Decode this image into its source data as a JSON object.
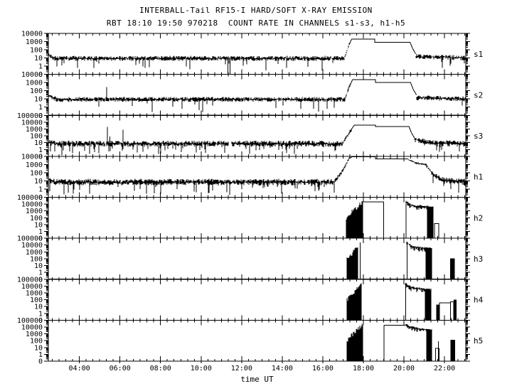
{
  "chart_data": {
    "type": "line",
    "title": "INTERBALL-Tail RF15-I HARD/SOFT X-RAY EMISSION",
    "subtitle": "RBT 18:10 19:50 970218  COUNT RATE IN CHANNELS s1-s3, h1-h5",
    "xlabel": "time UT",
    "grid": false,
    "legend": "none",
    "y_axis": {
      "scale": "pseudo-log",
      "zero_at_bottom": true
    },
    "x_axis": {
      "start_hour": 2.47,
      "end_hour": 23.05,
      "major_tick_hours": [
        4,
        6,
        8,
        10,
        12,
        14,
        16,
        18,
        20,
        22
      ],
      "tick_labels": [
        "04:00",
        "06:00",
        "08:00",
        "10:00",
        "12:00",
        "14:00",
        "16:00",
        "18:00",
        "20:00",
        "22:00"
      ],
      "minor_tick_minutes": 20
    },
    "panels": [
      {
        "label": "s1",
        "max_exp": 4,
        "y_tick_labels": [
          "10000",
          "1000",
          "100",
          "10",
          "1",
          "0"
        ],
        "segments": [
          {
            "kind": "noise",
            "t": [
              2.47,
              2.8
            ],
            "level": [
              1.3,
              0.95
            ],
            "amp": 0.3,
            "p": 0.05
          },
          {
            "kind": "noise",
            "t": [
              2.8,
              17.05
            ],
            "level": [
              0.95,
              0.95
            ],
            "amp": 0.3,
            "p": 0.06
          },
          {
            "kind": "drop",
            "t": 11.33,
            "from": 0.9
          },
          {
            "kind": "drop",
            "t": 11.42,
            "from": 0.9
          },
          {
            "kind": "noise",
            "t": [
              17.05,
              17.3
            ],
            "level": [
              1.0,
              2.6
            ],
            "amp": 0.22,
            "p": 0
          },
          {
            "kind": "line",
            "pts": [
              [
                17.3,
                2.6
              ],
              [
                17.42,
                3.3
              ],
              [
                18.56,
                3.3
              ],
              [
                18.56,
                2.93
              ],
              [
                20.3,
                2.93
              ],
              [
                20.44,
                2.1
              ],
              [
                20.58,
                1.5
              ]
            ]
          },
          {
            "kind": "noise",
            "t": [
              20.58,
              23.05
            ],
            "level": [
              1.2,
              1.0
            ],
            "amp": 0.3,
            "p": 0.06
          }
        ]
      },
      {
        "label": "s2",
        "max_exp": 4,
        "y_tick_labels": [
          "10000",
          "1000",
          "100",
          "10",
          "1",
          "0"
        ],
        "segments": [
          {
            "kind": "noise",
            "t": [
              2.47,
              2.9
            ],
            "level": [
              1.45,
              0.95
            ],
            "amp": 0.3,
            "p": 0.05
          },
          {
            "kind": "noise",
            "t": [
              2.9,
              17.1
            ],
            "level": [
              0.95,
              0.95
            ],
            "amp": 0.3,
            "p": 0.06
          },
          {
            "kind": "spike",
            "t": 5.35,
            "from": 1.1,
            "level": 2.45
          },
          {
            "kind": "noise",
            "t": [
              17.1,
              17.35
            ],
            "level": [
              1.0,
              2.7
            ],
            "amp": 0.22,
            "p": 0
          },
          {
            "kind": "line",
            "pts": [
              [
                17.35,
                2.7
              ],
              [
                17.47,
                3.37
              ],
              [
                18.6,
                3.37
              ],
              [
                18.6,
                3.0
              ],
              [
                20.33,
                3.0
              ],
              [
                20.47,
                2.1
              ],
              [
                20.62,
                1.5
              ]
            ]
          },
          {
            "kind": "noise",
            "t": [
              20.62,
              23.05
            ],
            "level": [
              1.15,
              1.0
            ],
            "amp": 0.3,
            "p": 0.06
          }
        ]
      },
      {
        "label": "s3",
        "max_exp": 5,
        "y_tick_labels": [
          "100000",
          "10000",
          "1000",
          "100",
          "10",
          "1",
          "0"
        ],
        "segments": [
          {
            "kind": "noise",
            "t": [
              2.47,
              2.8
            ],
            "level": [
              1.1,
              0.85
            ],
            "amp": 0.45,
            "p": 0.1
          },
          {
            "kind": "noise",
            "t": [
              2.8,
              11.33
            ],
            "level": [
              0.85,
              0.85
            ],
            "amp": 0.45,
            "p": 0.12
          },
          {
            "kind": "spike",
            "t": 5.38,
            "from": 1.0,
            "level": 3.3
          },
          {
            "kind": "spike",
            "t": 5.5,
            "from": 1.0,
            "level": 1.9
          },
          {
            "kind": "spike",
            "t": 6.15,
            "from": 1.0,
            "level": 2.9
          },
          {
            "kind": "noise",
            "t": [
              11.5,
              17.0
            ],
            "level": [
              0.85,
              0.85
            ],
            "amp": 0.45,
            "p": 0.12
          },
          {
            "kind": "noise",
            "t": [
              17.0,
              17.4
            ],
            "level": [
              0.95,
              2.9
            ],
            "amp": 0.28,
            "p": 0
          },
          {
            "kind": "line",
            "pts": [
              [
                17.4,
                2.9
              ],
              [
                17.55,
                3.55
              ],
              [
                18.6,
                3.55
              ],
              [
                18.6,
                3.37
              ],
              [
                20.25,
                3.37
              ],
              [
                20.38,
                2.4
              ],
              [
                20.52,
                1.7
              ]
            ]
          },
          {
            "kind": "noise",
            "t": [
              20.52,
              21.3
            ],
            "level": [
              1.5,
              1.0
            ],
            "amp": 0.4,
            "p": 0.1
          },
          {
            "kind": "noise",
            "t": [
              21.3,
              23.05
            ],
            "level": [
              0.92,
              0.88
            ],
            "amp": 0.45,
            "p": 0.12
          }
        ]
      },
      {
        "label": "h1",
        "max_exp": 4,
        "y_tick_labels": [
          "10000",
          "1000",
          "100",
          "10",
          "1",
          "0"
        ],
        "segments": [
          {
            "kind": "noise",
            "t": [
              2.47,
              2.8
            ],
            "level": [
              1.15,
              0.85
            ],
            "amp": 0.4,
            "p": 0.08
          },
          {
            "kind": "noise",
            "t": [
              2.8,
              16.55
            ],
            "level": [
              0.85,
              0.85
            ],
            "amp": 0.4,
            "p": 0.08
          },
          {
            "kind": "noise",
            "t": [
              16.55,
              16.95
            ],
            "level": [
              0.9,
              2.1
            ],
            "amp": 0.28,
            "p": 0
          },
          {
            "kind": "noise",
            "t": [
              16.95,
              17.3
            ],
            "level": [
              2.1,
              3.75
            ],
            "amp": 0.18,
            "p": 0
          },
          {
            "kind": "line",
            "pts": [
              [
                17.3,
                3.75
              ],
              [
                17.45,
                3.95
              ],
              [
                18.6,
                3.95
              ],
              [
                18.6,
                3.7
              ],
              [
                20.2,
                3.7
              ]
            ]
          },
          {
            "kind": "noise",
            "t": [
              20.2,
              20.55
            ],
            "level": [
              3.62,
              3.25
            ],
            "amp": 0.12,
            "p": 0
          },
          {
            "kind": "noise",
            "t": [
              20.55,
              21.1
            ],
            "level": [
              3.2,
              3.0
            ],
            "amp": 0.15,
            "p": 0
          },
          {
            "kind": "noise",
            "t": [
              21.1,
              21.4
            ],
            "level": [
              2.9,
              1.9
            ],
            "amp": 0.25,
            "p": 0.03
          },
          {
            "kind": "noise",
            "t": [
              21.4,
              21.95
            ],
            "level": [
              1.8,
              1.1
            ],
            "amp": 0.35,
            "p": 0.05
          },
          {
            "kind": "noise",
            "t": [
              21.95,
              23.05
            ],
            "level": [
              1.0,
              0.9
            ],
            "amp": 0.4,
            "p": 0.08
          }
        ]
      },
      {
        "label": "h2",
        "max_exp": 5,
        "y_tick_labels": [
          "100000",
          "10000",
          "1000",
          "100",
          "10",
          "1",
          "0"
        ],
        "segments": [
          {
            "kind": "zero",
            "t": [
              2.47,
              17.15
            ]
          },
          {
            "kind": "burst",
            "t": [
              17.15,
              17.95
            ],
            "env": [
              [
                17.15,
                1.8
              ],
              [
                17.4,
                2.9
              ],
              [
                17.7,
                3.6
              ],
              [
                17.95,
                4.4
              ]
            ],
            "jitter": 0.3
          },
          {
            "kind": "rect",
            "t": [
              17.95,
              19.0
            ],
            "level": 4.32
          },
          {
            "kind": "zero",
            "t": [
              19.0,
              20.1
            ]
          },
          {
            "kind": "band",
            "t": [
              20.1,
              21.42
            ],
            "env": [
              [
                20.1,
                4.45
              ],
              [
                20.3,
                4.0
              ],
              [
                20.6,
                3.8
              ],
              [
                21.0,
                3.72
              ],
              [
                21.42,
                3.6
              ]
            ],
            "thick": 0.55,
            "solid_tail": 0.3,
            "lead": true
          },
          {
            "kind": "rect",
            "t": [
              21.5,
              21.72
            ],
            "level": 1.15
          },
          {
            "kind": "zero",
            "t": [
              21.72,
              23.05
            ]
          }
        ]
      },
      {
        "label": "h3",
        "max_exp": 5,
        "y_tick_labels": [
          "100000",
          "10000",
          "1000",
          "100",
          "10",
          "1",
          "0"
        ],
        "segments": [
          {
            "kind": "zero",
            "t": [
              2.47,
              17.18
            ]
          },
          {
            "kind": "burst",
            "t": [
              17.18,
              17.72
            ],
            "env": [
              [
                17.18,
                1.9
              ],
              [
                17.4,
                2.6
              ],
              [
                17.72,
                3.85
              ]
            ],
            "jitter": 0.3
          },
          {
            "kind": "zero",
            "t": [
              17.72,
              17.83
            ]
          },
          {
            "kind": "spike",
            "t": 17.85,
            "from": null,
            "level": 4.4
          },
          {
            "kind": "zero",
            "t": [
              17.86,
              20.15
            ]
          },
          {
            "kind": "band",
            "t": [
              20.15,
              21.38
            ],
            "env": [
              [
                20.15,
                4.4
              ],
              [
                20.4,
                3.9
              ],
              [
                20.8,
                3.7
              ],
              [
                21.38,
                3.55
              ]
            ],
            "thick": 0.55,
            "solid_tail": 0.3,
            "lead": true
          },
          {
            "kind": "zero",
            "t": [
              21.38,
              22.28
            ]
          },
          {
            "kind": "bar",
            "t": [
              22.28,
              22.5
            ],
            "level": 2.05
          },
          {
            "kind": "zero",
            "t": [
              22.5,
              23.05
            ]
          }
        ]
      },
      {
        "label": "h4",
        "max_exp": 5,
        "y_tick_labels": [
          "100000",
          "10000",
          "1000",
          "100",
          "10",
          "1",
          "0"
        ],
        "segments": [
          {
            "kind": "zero",
            "t": [
              2.47,
              17.2
            ]
          },
          {
            "kind": "burst",
            "t": [
              17.2,
              17.9
            ],
            "env": [
              [
                17.2,
                2.0
              ],
              [
                17.5,
                2.9
              ],
              [
                17.9,
                4.3
              ]
            ],
            "jitter": 0.3
          },
          {
            "kind": "zero",
            "t": [
              17.9,
              20.08
            ]
          },
          {
            "kind": "band",
            "t": [
              20.08,
              21.33
            ],
            "env": [
              [
                20.08,
                4.45
              ],
              [
                20.35,
                3.9
              ],
              [
                20.75,
                3.7
              ],
              [
                21.33,
                3.55
              ]
            ],
            "thick": 0.55,
            "solid_tail": 0.3,
            "lead": true
          },
          {
            "kind": "zero",
            "t": [
              21.33,
              21.6
            ]
          },
          {
            "kind": "bar",
            "t": [
              21.6,
              21.76
            ],
            "level": 1.3
          },
          {
            "kind": "rect",
            "t": [
              21.76,
              22.3
            ],
            "level": 1.55
          },
          {
            "kind": "rect",
            "t": [
              22.3,
              22.45
            ],
            "level": 1.72
          },
          {
            "kind": "bar",
            "t": [
              22.45,
              22.6
            ],
            "level": 2.0
          },
          {
            "kind": "zero",
            "t": [
              22.6,
              23.05
            ]
          }
        ]
      },
      {
        "label": "h5",
        "max_exp": 5,
        "y_tick_labels": [
          "100000",
          "10000",
          "1000",
          "100",
          "10",
          "1",
          "0"
        ],
        "segments": [
          {
            "kind": "zero",
            "t": [
              2.47,
              17.2
            ]
          },
          {
            "kind": "burst",
            "t": [
              17.2,
              17.97
            ],
            "env": [
              [
                17.2,
                2.0
              ],
              [
                17.5,
                3.0
              ],
              [
                17.97,
                4.4
              ]
            ],
            "jitter": 0.3
          },
          {
            "kind": "zero",
            "t": [
              17.97,
              19.02
            ]
          },
          {
            "kind": "spike",
            "t": 19.02,
            "from": null,
            "level": 4.28
          },
          {
            "kind": "line",
            "pts": [
              [
                19.02,
                4.28
              ],
              [
                20.1,
                4.28
              ]
            ]
          },
          {
            "kind": "band",
            "t": [
              20.1,
              21.38
            ],
            "env": [
              [
                20.1,
                4.45
              ],
              [
                20.35,
                4.05
              ],
              [
                20.8,
                3.8
              ],
              [
                21.38,
                3.6
              ]
            ],
            "thick": 0.5,
            "solid_tail": 0.28,
            "lead": false
          },
          {
            "kind": "zero",
            "t": [
              21.38,
              21.56
            ]
          },
          {
            "kind": "rect",
            "t": [
              21.56,
              21.74
            ],
            "level": 0.85
          },
          {
            "kind": "spike",
            "t": 21.7,
            "from": null,
            "level": 1.9
          },
          {
            "kind": "zero",
            "t": [
              21.74,
              22.3
            ]
          },
          {
            "kind": "bar",
            "t": [
              22.3,
              22.52
            ],
            "level": 2.1
          },
          {
            "kind": "zero",
            "t": [
              22.52,
              23.05
            ]
          }
        ]
      }
    ]
  }
}
